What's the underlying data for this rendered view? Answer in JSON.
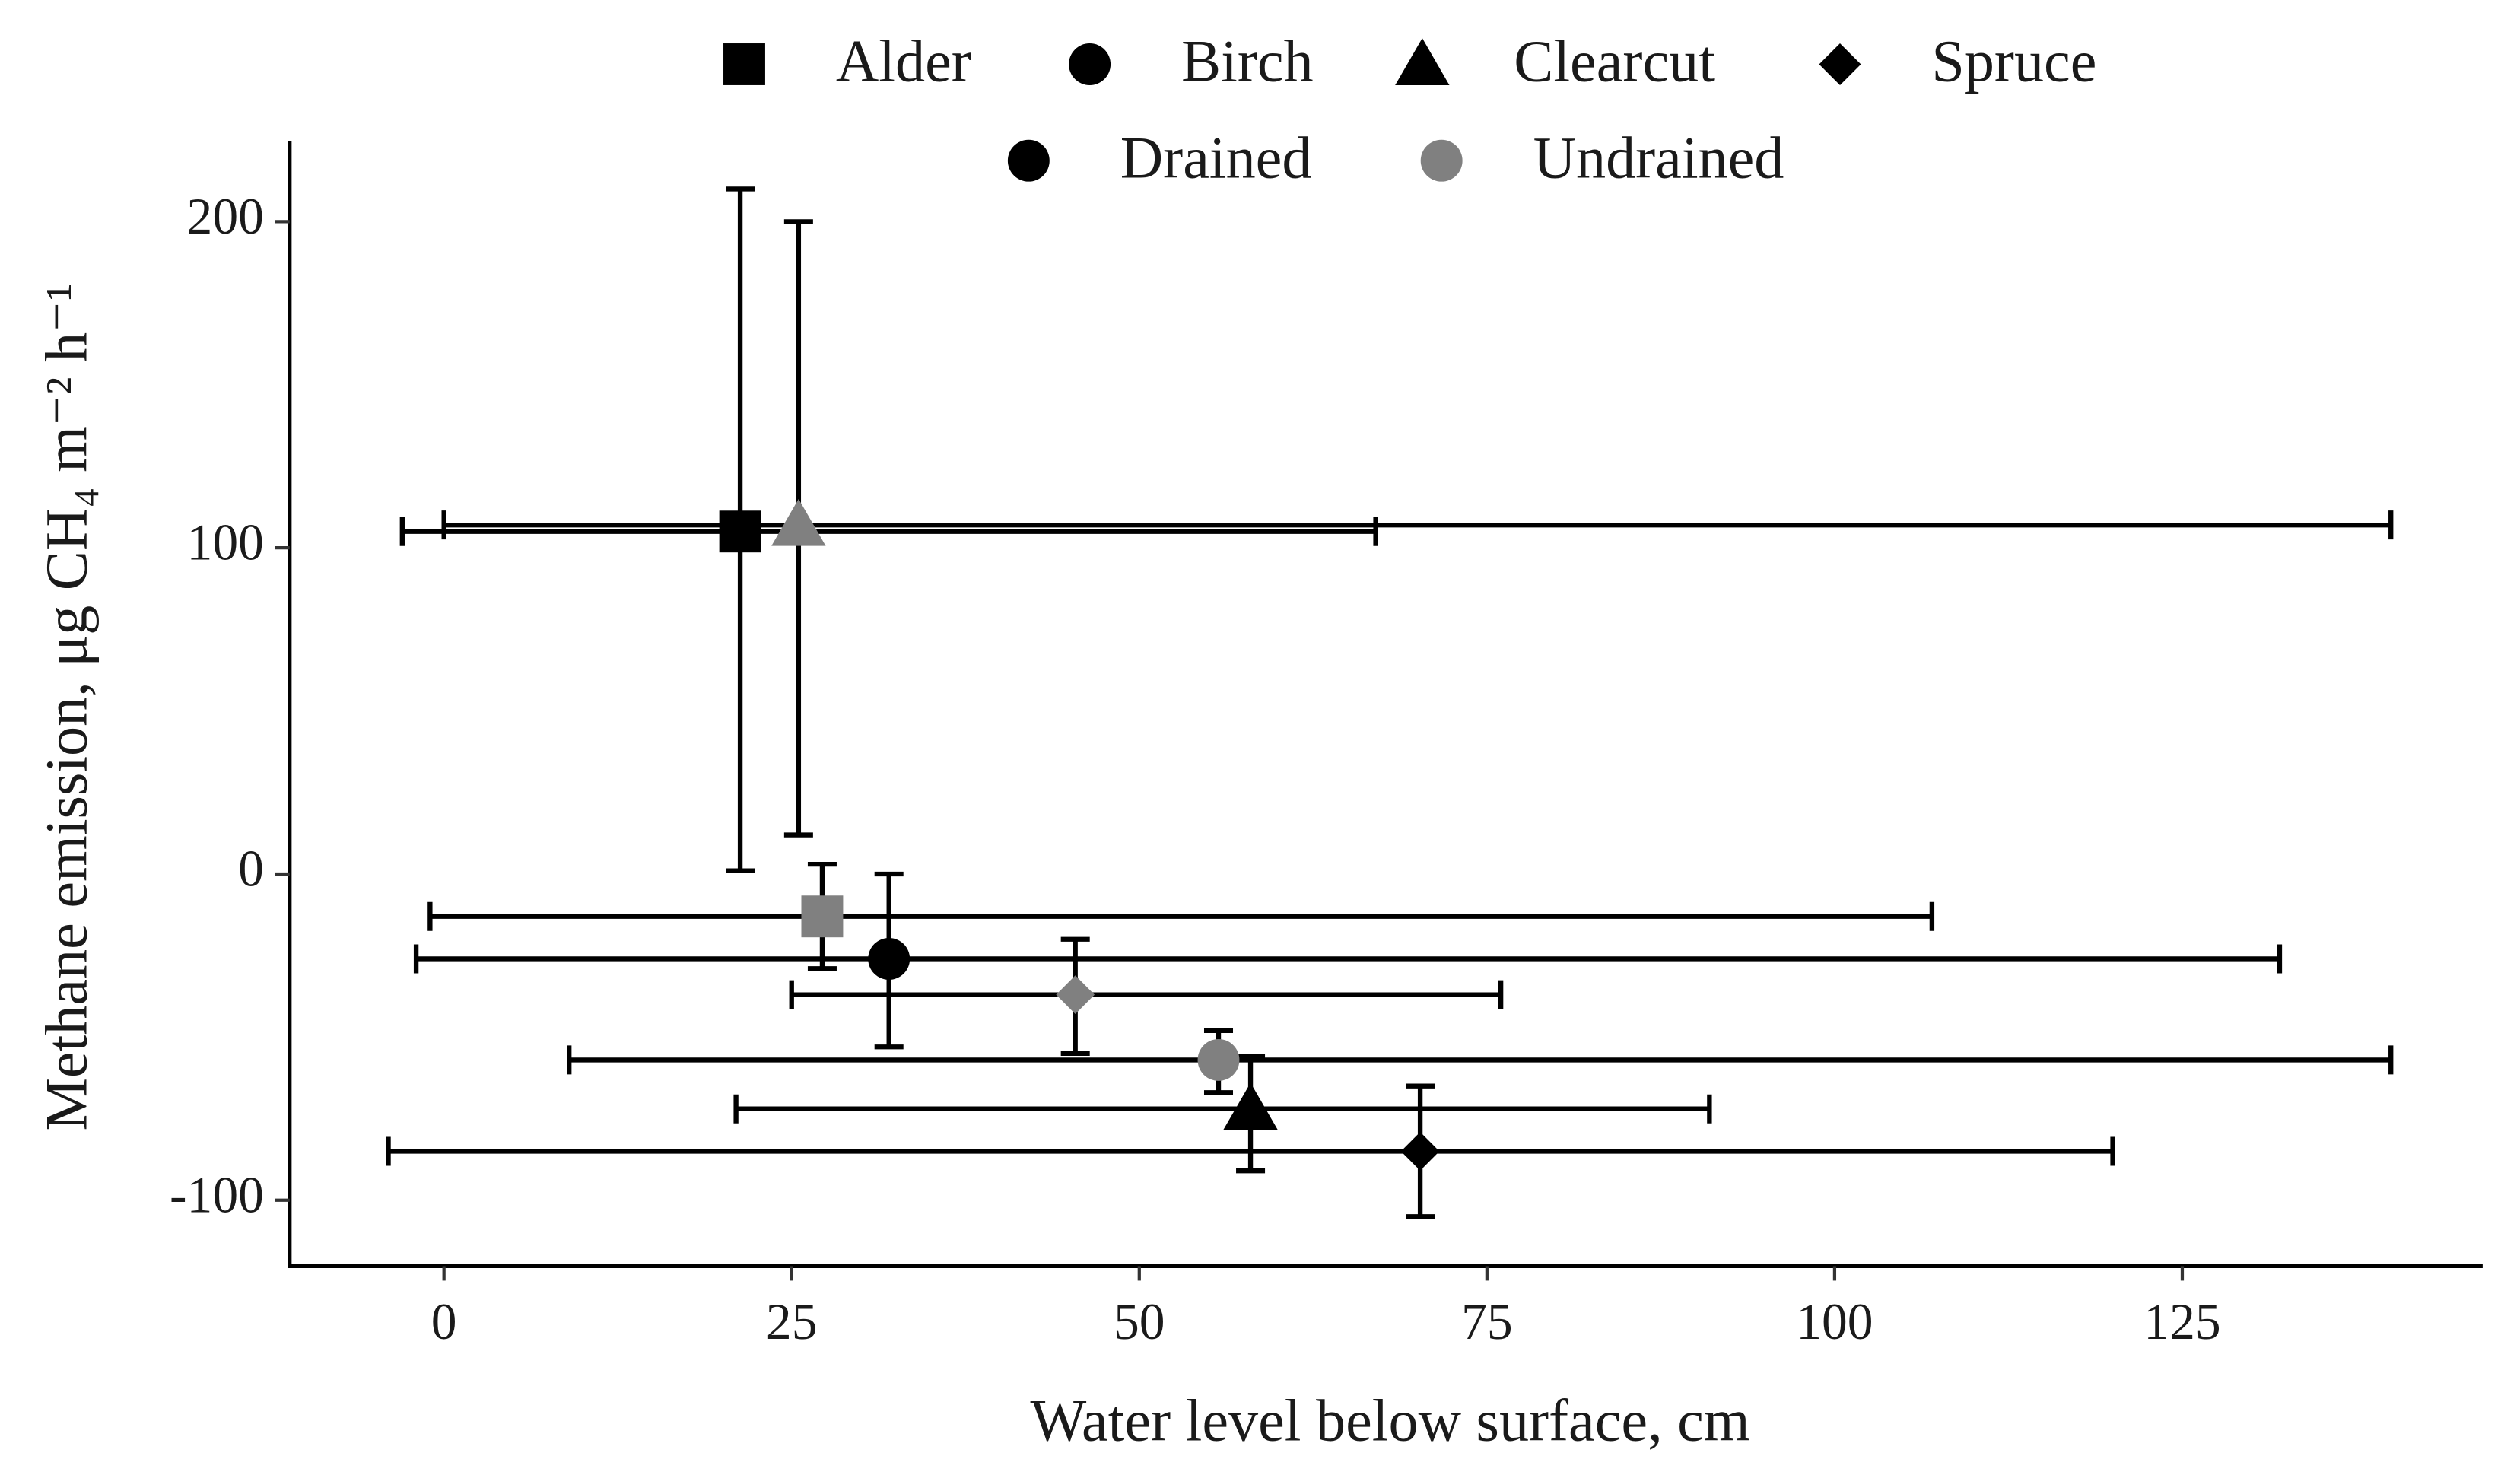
{
  "chart_data": {
    "type": "scatter",
    "xlabel": "Water level below surface, cm",
    "ylabel": "Methane emission, μg CH₄ m⁻² h⁻¹",
    "xlim": [
      -11.1,
      146.6
    ],
    "ylim": [
      -120.2,
      224.6
    ],
    "xticks": [
      0,
      25,
      50,
      75,
      100,
      125
    ],
    "yticks": [
      -100,
      0,
      100,
      200
    ],
    "shape_legend": [
      {
        "name": "Alder",
        "shape": "square"
      },
      {
        "name": "Birch",
        "shape": "circle"
      },
      {
        "name": "Clearcut",
        "shape": "triangle"
      },
      {
        "name": "Spruce",
        "shape": "diamond"
      }
    ],
    "color_legend": [
      {
        "name": "Drained",
        "color": "#000000"
      },
      {
        "name": "Undrained",
        "color": "#808080"
      }
    ],
    "points": [
      {
        "land_use": "Alder",
        "drainage": "Drained",
        "x": 21.3,
        "y": 105,
        "x_low": -3,
        "x_high": 67,
        "y_low": 1,
        "y_high": 210
      },
      {
        "land_use": "Clearcut",
        "drainage": "Undrained",
        "x": 25.5,
        "y": 107,
        "x_low": 0,
        "x_high": 140,
        "y_low": 12,
        "y_high": 200
      },
      {
        "land_use": "Alder",
        "drainage": "Undrained",
        "x": 27.2,
        "y": -13,
        "x_low": -1,
        "x_high": 107,
        "y_low": -29,
        "y_high": 3
      },
      {
        "land_use": "Birch",
        "drainage": "Drained",
        "x": 32,
        "y": -26,
        "x_low": -2,
        "x_high": 132,
        "y_low": -53,
        "y_high": 0
      },
      {
        "land_use": "Spruce",
        "drainage": "Undrained",
        "x": 45.4,
        "y": -37,
        "x_low": 25,
        "x_high": 76,
        "y_low": -55,
        "y_high": -20
      },
      {
        "land_use": "Birch",
        "drainage": "Undrained",
        "x": 55.7,
        "y": -57,
        "x_low": 9,
        "x_high": 140,
        "y_low": -67,
        "y_high": -48
      },
      {
        "land_use": "Clearcut",
        "drainage": "Drained",
        "x": 58,
        "y": -72,
        "x_low": 21,
        "x_high": 91,
        "y_low": -91,
        "y_high": -56
      },
      {
        "land_use": "Spruce",
        "drainage": "Drained",
        "x": 70.2,
        "y": -85,
        "x_low": -4,
        "x_high": 120,
        "y_low": -105,
        "y_high": -65
      }
    ]
  }
}
